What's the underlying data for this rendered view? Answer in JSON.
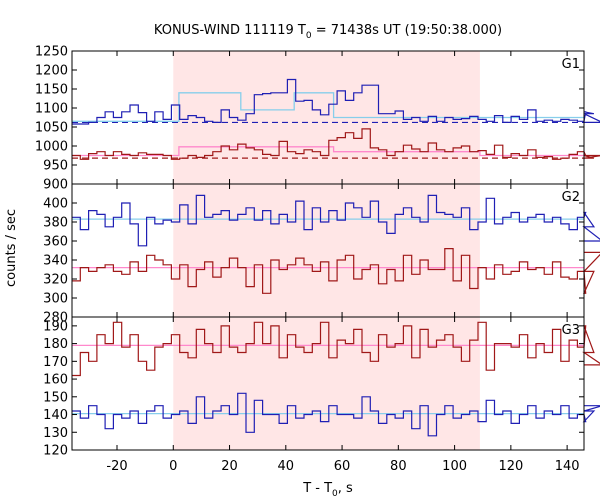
{
  "chart_data": {
    "type": "line",
    "title_prefix": "KONUS-WIND 111119 T",
    "title_sub": "0",
    "title_suffix": " = 71438s UT (19:50:38.000)",
    "xlabel_prefix": "T - T",
    "xlabel_sub": "0",
    "xlabel_suffix": ", s",
    "ylabel": "counts / sec",
    "xlim": [
      -36,
      146
    ],
    "xticks": [
      -20,
      0,
      20,
      40,
      60,
      80,
      100,
      120,
      140
    ],
    "highlight_interval": [
      0,
      109
    ],
    "highlight_color": "#ffe6e6",
    "grid": false,
    "panels": [
      {
        "label": "G1",
        "ylim": [
          900,
          1250
        ],
        "yticks": [
          900,
          950,
          1000,
          1050,
          1100,
          1150,
          1200,
          1250
        ],
        "series": [
          {
            "color": "#1f1fb4",
            "x0": -36,
            "dx": 2.945,
            "values": [
              1058,
              1058,
              1062,
              1075,
              1090,
              1075,
              1090,
              1108,
              1088,
              1065,
              1090,
              1070,
              1108,
              1070,
              1080,
              1075,
              1065,
              1062,
              1095,
              1075,
              1068,
              1085,
              1135,
              1138,
              1140,
              1140,
              1175,
              1118,
              1120,
              1095,
              1082,
              1110,
              1145,
              1120,
              1140,
              1160,
              1160,
              1085,
              1085,
              1092,
              1070,
              1075,
              1065,
              1078,
              1065,
              1075,
              1070,
              1072,
              1078,
              1070,
              1065,
              1080,
              1062,
              1078,
              1070,
              1095,
              1065,
              1068,
              1065,
              1070,
              1068,
              1065,
              1090,
              1085,
              1062
            ]
          },
          {
            "color": "#a01818",
            "x0": -36,
            "dx": 2.945,
            "values": [
              975,
              965,
              980,
              985,
              975,
              985,
              978,
              975,
              982,
              978,
              978,
              975,
              965,
              968,
              975,
              970,
              975,
              985,
              1000,
              990,
              1005,
              995,
              990,
              978,
              975,
              1012,
              985,
              980,
              990,
              985,
              975,
              1015,
              1022,
              1035,
              1020,
              1045,
              995,
              990,
              975,
              985,
              1002,
              992,
              985,
              1008,
              990,
              985,
              995,
              1000,
              985,
              988,
              978,
              1002,
              970,
              980,
              975,
              990,
              970,
              972,
              965,
              968,
              978,
              985,
              975,
              968,
              975
            ]
          }
        ],
        "fits": [
          {
            "color": "#87ceeb",
            "segments": [
              [
                -36,
                1065
              ],
              [
                2,
                1065
              ],
              [
                2,
                1140
              ],
              [
                24,
                1140
              ],
              [
                24,
                1095
              ],
              [
                43,
                1095
              ],
              [
                43,
                1140
              ],
              [
                57,
                1140
              ],
              [
                57,
                1075
              ],
              [
                146,
                1075
              ]
            ]
          },
          {
            "color": "#ff88cc",
            "segments": [
              [
                -36,
                975
              ],
              [
                2,
                975
              ],
              [
                2,
                998
              ],
              [
                57,
                998
              ],
              [
                57,
                985
              ],
              [
                109,
                985
              ],
              [
                109,
                975
              ],
              [
                146,
                975
              ]
            ]
          }
        ],
        "baselines": [
          {
            "color": "#1f1fb4",
            "value": 1062
          },
          {
            "color": "#a01818",
            "value": 968
          }
        ]
      },
      {
        "label": "G2",
        "ylim": [
          280,
          420
        ],
        "yticks": [
          280,
          300,
          320,
          340,
          360,
          380,
          400
        ],
        "series": [
          {
            "color": "#1f1fb4",
            "x0": -36,
            "dx": 2.945,
            "values": [
              385,
              372,
              392,
              388,
              375,
              385,
              400,
              378,
              355,
              385,
              378,
              382,
              380,
              398,
              378,
              408,
              385,
              388,
              392,
              382,
              388,
              395,
              382,
              392,
              378,
              388,
              380,
              402,
              372,
              395,
              380,
              392,
              382,
              400,
              395,
              385,
              402,
              380,
              368,
              388,
              395,
              385,
              380,
              408,
              390,
              388,
              385,
              395,
              372,
              380,
              405,
              378,
              385,
              390,
              380,
              385,
              388,
              380,
              385,
              378,
              372,
              385,
              390,
              375,
              360
            ]
          },
          {
            "color": "#a01818",
            "x0": -36,
            "dx": 2.945,
            "values": [
              318,
              332,
              328,
              332,
              335,
              328,
              325,
              338,
              328,
              345,
              340,
              335,
              320,
              335,
              312,
              330,
              338,
              322,
              332,
              342,
              332,
              312,
              335,
              305,
              340,
              330,
              335,
              342,
              335,
              328,
              338,
              318,
              340,
              345,
              320,
              330,
              335,
              315,
              330,
              318,
              345,
              325,
              340,
              330,
              330,
              352,
              318,
              345,
              310,
              332,
              320,
              335,
              325,
              328,
              338,
              330,
              332,
              325,
              338,
              322,
              320,
              328,
              305,
              328,
              348
            ]
          }
        ],
        "fits": [
          {
            "color": "#87ceeb",
            "segments": [
              [
                -36,
                383
              ],
              [
                146,
                383
              ]
            ]
          },
          {
            "color": "#ff88cc",
            "segments": [
              [
                -36,
                332
              ],
              [
                146,
                332
              ]
            ]
          }
        ],
        "baselines": []
      },
      {
        "label": "G3",
        "ylim": [
          120,
          195
        ],
        "yticks": [
          120,
          130,
          140,
          150,
          160,
          170,
          180,
          190
        ],
        "series": [
          {
            "color": "#a01818",
            "x0": -36,
            "dx": 2.945,
            "values": [
              162,
              175,
              170,
              185,
              180,
              192,
              178,
              185,
              170,
              165,
              178,
              180,
              185,
              175,
              172,
              188,
              180,
              175,
              190,
              178,
              175,
              180,
              192,
              180,
              190,
              172,
              185,
              178,
              175,
              180,
              192,
              172,
              182,
              180,
              188,
              175,
              170,
              185,
              178,
              180,
              190,
              172,
              188,
              178,
              182,
              185,
              178,
              170,
              182,
              192,
              165,
              180,
              180,
              178,
              185,
              172,
              180,
              175,
              188,
              170,
              182,
              178,
              190,
              175,
              168
            ]
          },
          {
            "color": "#1f1fb4",
            "x0": -36,
            "dx": 2.945,
            "values": [
              142,
              138,
              145,
              140,
              132,
              140,
              138,
              142,
              135,
              142,
              145,
              138,
              140,
              142,
              135,
              150,
              138,
              142,
              145,
              140,
              152,
              130,
              148,
              140,
              140,
              135,
              145,
              138,
              140,
              142,
              136,
              145,
              140,
              140,
              138,
              150,
              142,
              135,
              140,
              138,
              142,
              132,
              145,
              128,
              140,
              145,
              138,
              140,
              142,
              136,
              148,
              140,
              142,
              135,
              140,
              145,
              138,
              142,
              140,
              145,
              138,
              140,
              136,
              142,
              145
            ]
          }
        ],
        "fits": [
          {
            "color": "#ff88cc",
            "segments": [
              [
                -36,
                179
              ],
              [
                146,
                179
              ]
            ]
          },
          {
            "color": "#87ceeb",
            "segments": [
              [
                -36,
                140.5
              ],
              [
                146,
                140.5
              ]
            ]
          }
        ],
        "baselines": []
      }
    ]
  }
}
